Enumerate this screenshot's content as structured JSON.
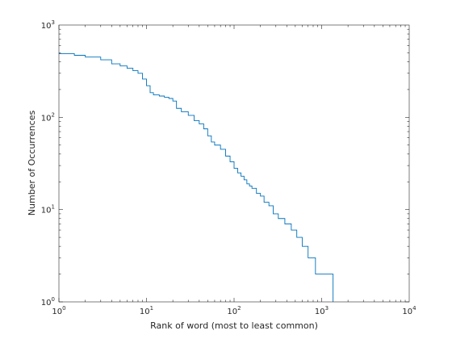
{
  "chart_data": {
    "type": "line",
    "title": "",
    "xlabel": "Rank of word (most to least common)",
    "ylabel": "Number of Occurrences",
    "xscale": "log",
    "yscale": "log",
    "xlim": [
      1,
      10000
    ],
    "ylim": [
      1,
      1000
    ],
    "grid": false,
    "line_color": "#0072bd",
    "step": true,
    "x_ticks": [
      {
        "value": 1,
        "base": "10",
        "exp": "0"
      },
      {
        "value": 10,
        "base": "10",
        "exp": "1"
      },
      {
        "value": 100,
        "base": "10",
        "exp": "2"
      },
      {
        "value": 1000,
        "base": "10",
        "exp": "3"
      },
      {
        "value": 10000,
        "base": "10",
        "exp": "4"
      }
    ],
    "y_ticks": [
      {
        "value": 1,
        "base": "10",
        "exp": "0"
      },
      {
        "value": 10,
        "base": "10",
        "exp": "1"
      },
      {
        "value": 100,
        "base": "10",
        "exp": "2"
      },
      {
        "value": 1000,
        "base": "10",
        "exp": "3"
      }
    ],
    "series": [
      {
        "x": [
          1,
          1.5,
          2,
          3,
          4,
          5,
          6,
          7,
          8,
          9,
          10,
          11,
          12,
          14,
          16,
          18,
          20,
          22,
          25,
          30,
          35,
          40,
          45,
          50,
          55,
          60,
          70,
          80,
          90,
          100,
          110,
          120,
          130,
          140,
          150,
          160,
          180,
          200,
          220,
          250,
          280,
          320,
          380,
          450,
          520,
          600,
          700,
          850,
          1000,
          1200,
          1350
        ],
        "y": [
          490,
          470,
          450,
          420,
          380,
          360,
          340,
          320,
          300,
          260,
          220,
          185,
          175,
          170,
          165,
          160,
          150,
          125,
          115,
          105,
          92,
          85,
          75,
          63,
          54,
          50,
          45,
          38,
          33,
          28,
          25,
          23,
          21,
          19,
          18,
          17,
          15,
          14,
          12,
          11,
          9,
          8,
          7,
          6,
          5,
          4,
          3,
          2,
          2,
          2,
          1
        ]
      }
    ]
  }
}
